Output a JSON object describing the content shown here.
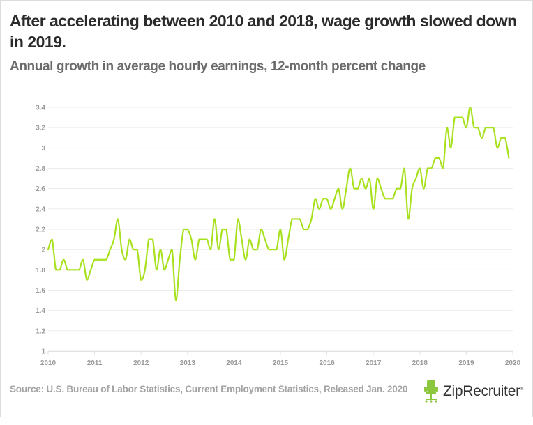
{
  "header": {
    "title": "After accelerating between 2010 and 2018, wage growth slowed down in 2019.",
    "subtitle": "Annual growth in average hourly earnings, 12-month percent change"
  },
  "footer": {
    "source": "Source: U.S. Bureau of Labor Statistics, Current Employment Statistics, Released Jan. 2020",
    "logo_text": "ZipRecruiter",
    "logo_mark": "®",
    "logo_icon": "chair-icon"
  },
  "colors": {
    "line": "#a8e11e",
    "grid": "#ebebeb",
    "tick_text": "#9a9a9a",
    "logo_green": "#8dc63f"
  },
  "chart_data": {
    "type": "line",
    "title": "After accelerating between 2010 and 2018, wage growth slowed down in 2019.",
    "subtitle": "Annual growth in average hourly earnings, 12-month percent change",
    "xlabel": "",
    "ylabel": "",
    "x_start": "2010-01",
    "x_frequency": "monthly",
    "xlim": [
      2010,
      2020
    ],
    "ylim": [
      1,
      3.4
    ],
    "grid": true,
    "legend": "none",
    "x_ticks": [
      "2010",
      "2011",
      "2012",
      "2013",
      "2014",
      "2015",
      "2016",
      "2017",
      "2018",
      "2019",
      "2020"
    ],
    "y_ticks": [
      "1",
      "1.2",
      "1.4",
      "1.6",
      "1.8",
      "2",
      "2.2",
      "2.4",
      "2.6",
      "2.8",
      "3",
      "3.2",
      "3.4"
    ],
    "y_tick_values": [
      1,
      1.2,
      1.4,
      1.6,
      1.8,
      2,
      2.2,
      2.4,
      2.6,
      2.8,
      3,
      3.2,
      3.4
    ],
    "series": [
      {
        "name": "Average hourly earnings, 12-month % change",
        "values": [
          2.0,
          2.1,
          1.8,
          1.8,
          1.9,
          1.8,
          1.8,
          1.8,
          1.8,
          1.9,
          1.7,
          1.8,
          1.9,
          1.9,
          1.9,
          1.9,
          2.0,
          2.1,
          2.3,
          2.0,
          1.9,
          2.1,
          2.0,
          2.0,
          1.7,
          1.8,
          2.1,
          2.1,
          1.8,
          2.0,
          1.8,
          1.9,
          2.0,
          1.5,
          1.9,
          2.2,
          2.2,
          2.1,
          1.9,
          2.1,
          2.1,
          2.1,
          2.0,
          2.3,
          2.0,
          2.2,
          2.2,
          1.9,
          1.9,
          2.3,
          2.1,
          1.9,
          2.1,
          2.0,
          2.0,
          2.2,
          2.1,
          2.0,
          2.0,
          2.0,
          2.2,
          1.9,
          2.1,
          2.3,
          2.3,
          2.3,
          2.2,
          2.2,
          2.3,
          2.5,
          2.4,
          2.5,
          2.5,
          2.4,
          2.5,
          2.6,
          2.4,
          2.6,
          2.8,
          2.6,
          2.6,
          2.7,
          2.6,
          2.7,
          2.4,
          2.7,
          2.6,
          2.5,
          2.5,
          2.5,
          2.6,
          2.6,
          2.8,
          2.3,
          2.6,
          2.7,
          2.8,
          2.6,
          2.8,
          2.8,
          2.9,
          2.9,
          2.8,
          3.2,
          3.0,
          3.3,
          3.3,
          3.3,
          3.2,
          3.4,
          3.2,
          3.2,
          3.1,
          3.2,
          3.2,
          3.2,
          3.0,
          3.1,
          3.1,
          2.9
        ]
      }
    ]
  }
}
